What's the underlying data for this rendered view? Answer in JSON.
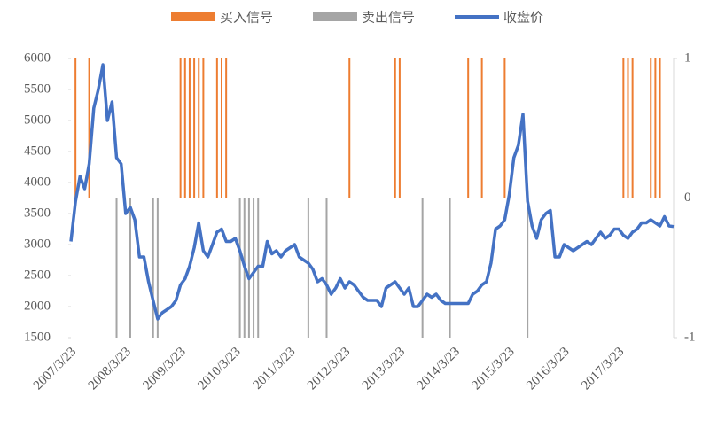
{
  "chart_data": {
    "type": "combo",
    "categories": [
      "2007/3/23",
      null,
      null,
      null,
      null,
      null,
      null,
      null,
      null,
      null,
      null,
      null,
      "2008/3/23",
      null,
      null,
      null,
      null,
      null,
      null,
      null,
      null,
      null,
      null,
      null,
      "2009/3/23",
      null,
      null,
      null,
      null,
      null,
      null,
      null,
      null,
      null,
      null,
      null,
      "2010/3/23",
      null,
      null,
      null,
      null,
      null,
      null,
      null,
      null,
      null,
      null,
      null,
      "2011/3/23",
      null,
      null,
      null,
      null,
      null,
      null,
      null,
      null,
      null,
      null,
      null,
      "2012/3/23",
      null,
      null,
      null,
      null,
      null,
      null,
      null,
      null,
      null,
      null,
      null,
      "2013/3/23",
      null,
      null,
      null,
      null,
      null,
      null,
      null,
      null,
      null,
      null,
      null,
      "2014/3/23",
      null,
      null,
      null,
      null,
      null,
      null,
      null,
      null,
      null,
      null,
      null,
      "2015/3/23",
      null,
      null,
      null,
      null,
      null,
      null,
      null,
      null,
      null,
      null,
      null,
      "2016/3/23",
      null,
      null,
      null,
      null,
      null,
      null,
      null,
      null,
      null,
      null,
      null,
      "2017/3/23",
      null,
      null,
      null,
      null,
      null,
      null,
      null,
      null,
      null,
      null,
      null,
      null
    ],
    "series": [
      {
        "name": "买入信号",
        "type": "bar",
        "axis": "y2",
        "color": "#ed7d31",
        "values": [
          null,
          1,
          null,
          null,
          1,
          null,
          null,
          null,
          null,
          null,
          null,
          null,
          null,
          null,
          null,
          null,
          null,
          null,
          null,
          null,
          null,
          null,
          null,
          null,
          1,
          1,
          1,
          1,
          1,
          1,
          null,
          null,
          1,
          1,
          1,
          null,
          null,
          null,
          null,
          null,
          null,
          null,
          null,
          null,
          null,
          null,
          null,
          null,
          null,
          null,
          null,
          null,
          null,
          null,
          null,
          null,
          null,
          null,
          null,
          null,
          null,
          1,
          null,
          null,
          null,
          null,
          null,
          null,
          null,
          null,
          null,
          1,
          1,
          null,
          null,
          null,
          null,
          null,
          null,
          null,
          null,
          null,
          null,
          null,
          null,
          null,
          null,
          1,
          null,
          null,
          1,
          null,
          null,
          null,
          null,
          1,
          null,
          null,
          null,
          null,
          null,
          null,
          null,
          null,
          null,
          null,
          null,
          null,
          null,
          null,
          null,
          null,
          null,
          null,
          null,
          null,
          null,
          null,
          null,
          null,
          null,
          1,
          1,
          1,
          null,
          null,
          null,
          1,
          1,
          1,
          null,
          null,
          null
        ]
      },
      {
        "name": "卖出信号",
        "type": "bar",
        "axis": "y2",
        "color": "#a5a5a5",
        "values": [
          null,
          null,
          null,
          null,
          null,
          null,
          null,
          null,
          null,
          null,
          -1,
          null,
          null,
          -1,
          null,
          null,
          null,
          null,
          -1,
          -1,
          null,
          null,
          null,
          null,
          null,
          null,
          null,
          null,
          null,
          null,
          null,
          null,
          null,
          null,
          null,
          null,
          null,
          -1,
          -1,
          -1,
          -1,
          -1,
          null,
          null,
          null,
          null,
          null,
          null,
          null,
          null,
          null,
          null,
          -1,
          null,
          null,
          null,
          -1,
          null,
          null,
          null,
          null,
          null,
          null,
          null,
          null,
          null,
          null,
          null,
          null,
          null,
          null,
          null,
          null,
          null,
          null,
          null,
          null,
          -1,
          null,
          null,
          null,
          null,
          null,
          -1,
          null,
          null,
          null,
          null,
          null,
          null,
          null,
          null,
          null,
          null,
          null,
          null,
          null,
          null,
          null,
          null,
          -1,
          null,
          null,
          null,
          null,
          null,
          null,
          null,
          null,
          null,
          null,
          null,
          null,
          null,
          null,
          null,
          null,
          null,
          null,
          null,
          null,
          null,
          null,
          null,
          null,
          null,
          null,
          null,
          null,
          null,
          null,
          null,
          null
        ]
      },
      {
        "name": "收盘价",
        "type": "line",
        "color": "#4472c4",
        "values": [
          3050,
          3700,
          4100,
          3900,
          4300,
          5200,
          5500,
          5900,
          5000,
          5300,
          4400,
          4300,
          3500,
          3600,
          3400,
          2800,
          2800,
          2400,
          2100,
          1800,
          1900,
          1950,
          2000,
          2100,
          2350,
          2450,
          2650,
          2950,
          3350,
          2900,
          2800,
          3000,
          3200,
          3250,
          3050,
          3050,
          3100,
          2900,
          2650,
          2450,
          2550,
          2650,
          2650,
          3050,
          2850,
          2900,
          2800,
          2900,
          2950,
          3000,
          2800,
          2750,
          2700,
          2600,
          2400,
          2450,
          2350,
          2200,
          2300,
          2450,
          2300,
          2400,
          2350,
          2250,
          2150,
          2100,
          2100,
          2100,
          2000,
          2300,
          2350,
          2400,
          2300,
          2200,
          2300,
          2000,
          2000,
          2100,
          2200,
          2150,
          2200,
          2100,
          2050,
          2050,
          2050,
          2050,
          2050,
          2050,
          2200,
          2250,
          2350,
          2400,
          2700,
          3250,
          3300,
          3400,
          3800,
          4400,
          4600,
          5100,
          3700,
          3300,
          3100,
          3400,
          3500,
          3550,
          2800,
          2800,
          3000,
          2950,
          2900,
          2950,
          3000,
          3050,
          3000,
          3100,
          3200,
          3100,
          3150,
          3250,
          3250,
          3150,
          3100,
          3200,
          3250,
          3350,
          3350,
          3400,
          3350,
          3300,
          3450,
          3300,
          3290
        ]
      }
    ],
    "ylim": [
      1500,
      6000
    ],
    "yticks": [
      1500,
      2000,
      2500,
      3000,
      3500,
      4000,
      4500,
      5000,
      5500,
      6000
    ],
    "y2lim": [
      -1,
      1
    ],
    "y2ticks": [
      -1,
      0,
      1
    ]
  }
}
